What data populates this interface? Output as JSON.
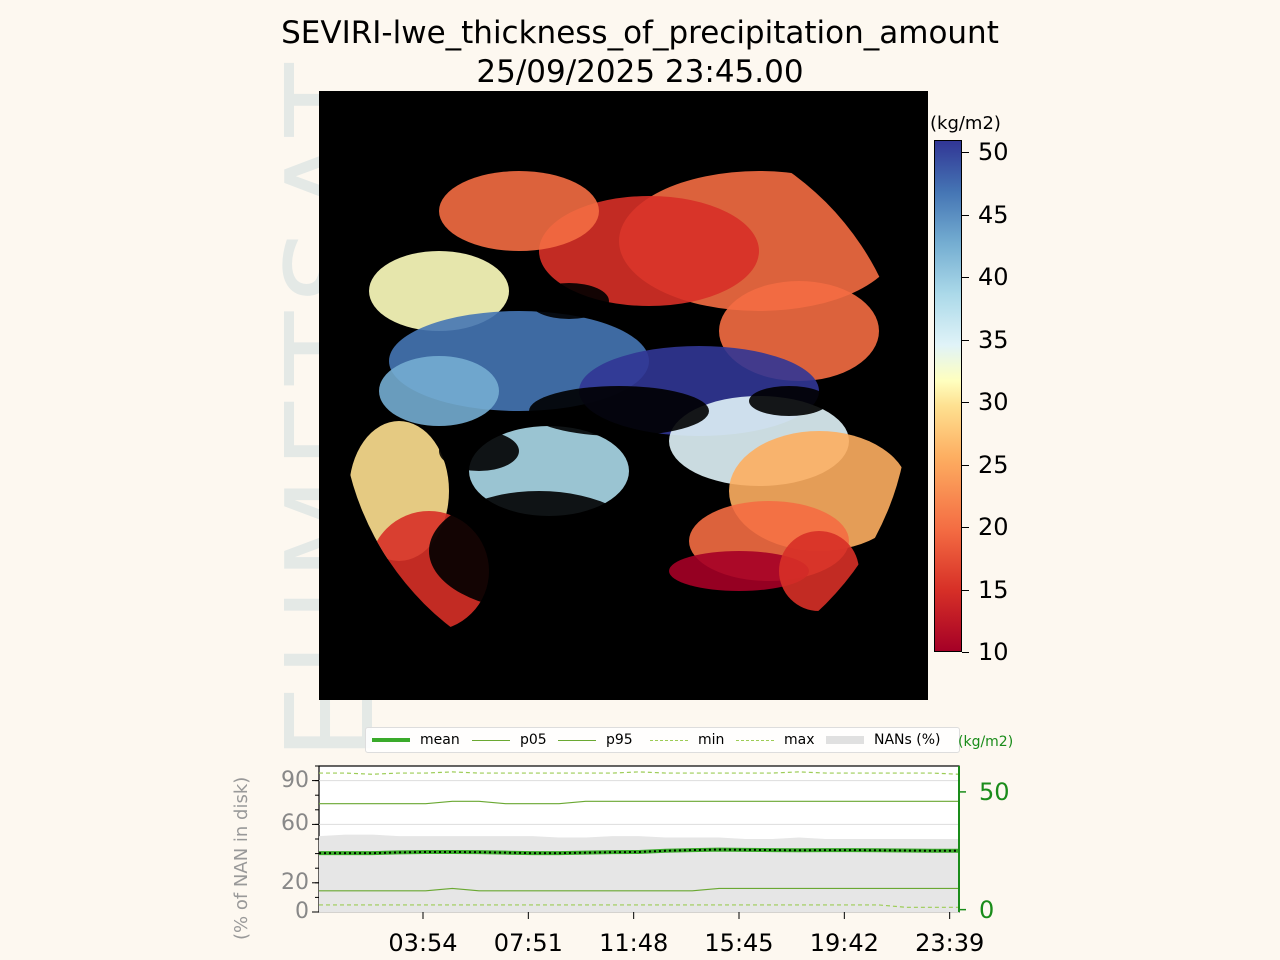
{
  "chart_data": [
    {
      "type": "heatmap",
      "title": "SEVIRI-lwe_thickness_of_precipitation_amount",
      "subtitle": "25/09/2025 23:45.00",
      "colorbar": {
        "unit": "(kg/m2)",
        "min": 10,
        "max": 51,
        "ticks": [
          10,
          15,
          20,
          25,
          30,
          35,
          40,
          45,
          50
        ],
        "colormap": [
          "#a50026",
          "#d73027",
          "#f46d43",
          "#fdae61",
          "#fee090",
          "#ffffbf",
          "#e0f3f8",
          "#abd9e9",
          "#74add1",
          "#4575b4",
          "#313695"
        ]
      },
      "background": "#000000"
    },
    {
      "type": "line",
      "legend": {
        "position": "top",
        "entries": [
          {
            "name": "mean",
            "color": "#3aaa2a",
            "style": "solid-thick"
          },
          {
            "name": "p05",
            "color": "#6aa832",
            "style": "solid"
          },
          {
            "name": "p95",
            "color": "#6aa832",
            "style": "solid"
          },
          {
            "name": "min",
            "color": "#9ccc55",
            "style": "dashed"
          },
          {
            "name": "max",
            "color": "#9ccc55",
            "style": "dashed"
          },
          {
            "name": "NANs (%)",
            "color": "#e0e0e0",
            "style": "band"
          }
        ]
      },
      "ylabel_left": "(% of NAN in disk)",
      "ylabel_right": "(kg/m2)",
      "yticks_left": [
        0,
        20,
        60,
        90
      ],
      "yticks_right": [
        0,
        50
      ],
      "ylim_right": [
        -1,
        61
      ],
      "xticks": [
        "03:54",
        "07:51",
        "11:48",
        "15:45",
        "19:42",
        "23:39"
      ],
      "x_hours": [
        0,
        1,
        2,
        3,
        4,
        5,
        6,
        7,
        8,
        9,
        10,
        11,
        12,
        13,
        14,
        15,
        16,
        17,
        18,
        19,
        20,
        21,
        22,
        23,
        24
      ],
      "series": [
        {
          "name": "max",
          "values": [
            58,
            58,
            57.5,
            58,
            58,
            58.5,
            58,
            58,
            58,
            58,
            58,
            58,
            58.5,
            58,
            58,
            58,
            58,
            58,
            58.5,
            58,
            58,
            58,
            58,
            58,
            57.5
          ]
        },
        {
          "name": "p95",
          "values": [
            45,
            45,
            45,
            45,
            45,
            46,
            46,
            45,
            45,
            45,
            46,
            46,
            46,
            46,
            46,
            46,
            46,
            46,
            46,
            46,
            46,
            46,
            46,
            46,
            46
          ]
        },
        {
          "name": "mean",
          "values": [
            24,
            24,
            24,
            24.3,
            24.5,
            24.5,
            24.4,
            24.2,
            24,
            24,
            24.2,
            24.4,
            24.5,
            25,
            25.3,
            25.5,
            25.4,
            25.3,
            25.2,
            25.3,
            25.3,
            25.2,
            25.1,
            25,
            25
          ]
        },
        {
          "name": "p05",
          "values": [
            8,
            8,
            8,
            8,
            8,
            9,
            8,
            8,
            8,
            8,
            8,
            8,
            8,
            8,
            8,
            9,
            9,
            9,
            9,
            9,
            9,
            9,
            9,
            9,
            9
          ]
        },
        {
          "name": "min",
          "values": [
            2,
            2,
            2,
            2,
            2,
            2,
            2,
            2,
            2,
            2,
            2,
            2,
            2,
            2,
            2,
            2,
            2,
            2,
            2,
            2,
            2,
            2,
            1,
            1,
            1
          ]
        },
        {
          "name": "NANs (%)",
          "values": [
            52,
            53,
            53,
            52,
            52,
            52,
            52,
            52,
            52,
            51,
            51,
            52,
            52,
            51,
            51,
            51,
            50,
            50,
            51,
            50,
            50,
            50,
            50,
            50,
            50
          ]
        }
      ]
    }
  ],
  "watermark": "EUMETSAT"
}
